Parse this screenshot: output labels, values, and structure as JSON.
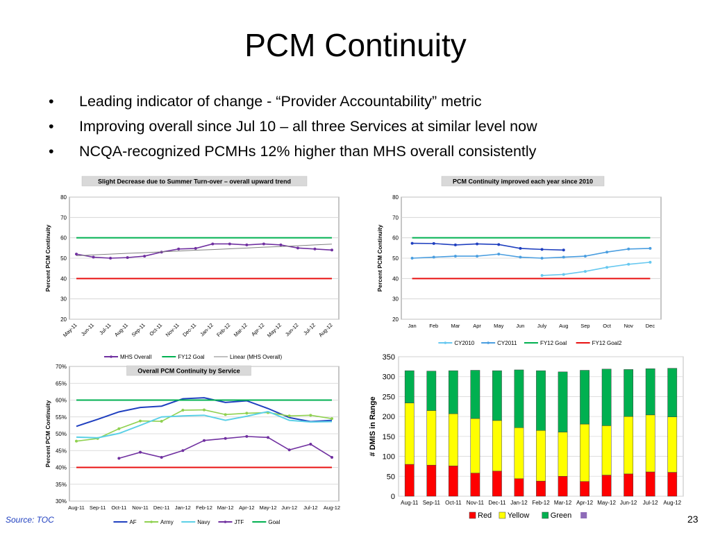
{
  "slide": {
    "title": "PCM Continuity",
    "bullets": [
      "Leading indicator of change - “Provider Accountability” metric",
      "Improving overall since Jul 10 – all three Services at similar level now",
      "NCQA-recognized PCMHs 12% higher than MHS overall consistently"
    ],
    "source": "Source:  TOC",
    "page_number": "23"
  },
  "chart_data": [
    {
      "type": "line",
      "title": "Slight Decrease due to Summer Turn-over – overall upward trend",
      "ylabel": "Percent PCM Continuity",
      "ylim": [
        20,
        80
      ],
      "yticks": [
        20,
        30,
        40,
        50,
        60,
        70,
        80
      ],
      "categories": [
        "May-11",
        "Jun-11",
        "Jul-11",
        "Aug-11",
        "Sep-11",
        "Oct-11",
        "Nov-11",
        "Dec-11",
        "Jan-12",
        "Feb-12",
        "Mar-12",
        "Apr-12",
        "May-12",
        "Jun-12",
        "Jul-12",
        "Aug-12"
      ],
      "series": [
        {
          "name": "MHS Overall",
          "color": "#7030a0",
          "marker": true,
          "values": [
            52,
            50.5,
            50,
            50.3,
            51,
            53,
            54.5,
            54.8,
            57,
            57,
            56.5,
            57,
            56.5,
            55,
            54.5,
            54
          ]
        },
        {
          "name": "FY12 Goal",
          "color": "#00b050",
          "marker": false,
          "values": [
            60,
            60,
            60,
            60,
            60,
            60,
            60,
            60,
            60,
            60,
            60,
            60,
            60,
            60,
            60,
            60
          ]
        },
        {
          "name": "Linear (MHS Overall)",
          "color": "#7f7f7f",
          "marker": false,
          "width": 1,
          "values": [
            51.2,
            51.6,
            52.0,
            52.4,
            52.7,
            53.1,
            53.5,
            53.9,
            54.2,
            54.6,
            55.0,
            55.4,
            55.7,
            56.1,
            56.5,
            56.9
          ]
        }
      ],
      "extra_lines": [
        {
          "color": "#e81010",
          "values": [
            40,
            40,
            40,
            40,
            40,
            40,
            40,
            40,
            40,
            40,
            40,
            40,
            40,
            40,
            40,
            40
          ]
        }
      ],
      "legend": "bottom"
    },
    {
      "type": "line",
      "title": "PCM Continuity improved each year since 2010",
      "ylabel": "Percent PCM Continuity",
      "ylim": [
        20,
        80
      ],
      "yticks": [
        20,
        30,
        40,
        50,
        60,
        70,
        80
      ],
      "categories": [
        "Jan",
        "Feb",
        "Mar",
        "Apr",
        "May",
        "Jun",
        "July",
        "Aug",
        "Sep",
        "Oct",
        "Nov",
        "Dec"
      ],
      "series": [
        {
          "name": "CY2010",
          "color": "#66c8f0",
          "marker": true,
          "values": [
            null,
            null,
            null,
            null,
            null,
            null,
            41.5,
            42,
            43.5,
            45.5,
            47,
            48
          ]
        },
        {
          "name": "CY2011",
          "color": "#4a9ee0",
          "marker": true,
          "values": [
            50,
            50.5,
            51,
            51,
            52,
            50.5,
            50,
            50.5,
            51,
            53,
            54.5,
            54.8
          ]
        },
        {
          "name": "FY12 Goal",
          "color": "#00b050",
          "marker": false,
          "values": [
            60,
            60,
            60,
            60,
            60,
            60,
            60,
            60,
            60,
            60,
            60,
            60
          ]
        },
        {
          "name": "FY12 Goal2",
          "color": "#e81010",
          "marker": false,
          "values": [
            40,
            40,
            40,
            40,
            40,
            40,
            40,
            40,
            40,
            40,
            40,
            40
          ]
        }
      ],
      "extra_lines": [
        {
          "color": "#1f3fbf",
          "marker": true,
          "values": [
            57.3,
            57.2,
            56.5,
            57,
            56.7,
            54.8,
            54.3,
            54
          ]
        }
      ],
      "legend": "bottom"
    },
    {
      "type": "line",
      "title": "Overall PCM Continuity by Service",
      "ylabel": "Percent PCM Continuity",
      "ylim": [
        30,
        70
      ],
      "yticks": [
        30,
        35,
        40,
        45,
        50,
        55,
        60,
        65,
        70
      ],
      "ytick_labels": [
        "30%",
        "35%",
        "40%",
        "45%",
        "50%",
        "55%",
        "60%",
        "65%",
        "70%"
      ],
      "categories": [
        "Aug-11",
        "Sep-11",
        "Oct-11",
        "Nov-11",
        "Dec-11",
        "Jan-12",
        "Feb-12",
        "Mar-12",
        "Apr-12",
        "May-12",
        "Jun-12",
        "Jul-12",
        "Aug-12"
      ],
      "series": [
        {
          "name": "AF",
          "color": "#1f3fbf",
          "marker": false,
          "values": [
            52.2,
            54.3,
            56.5,
            57.8,
            58.2,
            60.4,
            60.7,
            59.3,
            59.8,
            57.5,
            54.8,
            53.6,
            54.0
          ]
        },
        {
          "name": "Army",
          "color": "#8fd14f",
          "marker": true,
          "values": [
            47.8,
            48.6,
            51.5,
            53.8,
            53.7,
            57.0,
            57.1,
            55.7,
            56.1,
            56.3,
            55.3,
            55.5,
            54.5
          ]
        },
        {
          "name": "Navy",
          "color": "#5bd0e6",
          "marker": false,
          "values": [
            49.0,
            48.8,
            50.1,
            52.5,
            55.0,
            55.3,
            55.5,
            54.0,
            55.2,
            56.6,
            54.0,
            53.5,
            53.6
          ]
        },
        {
          "name": "JTF",
          "color": "#7030a0",
          "marker": true,
          "values": [
            null,
            null,
            42.7,
            44.5,
            43.0,
            45.0,
            48.0,
            48.6,
            49.2,
            48.9,
            45.2,
            46.9,
            43.0
          ]
        },
        {
          "name": "Goal",
          "color": "#00b050",
          "marker": false,
          "values": [
            60,
            60,
            60,
            60,
            60,
            60,
            60,
            60,
            60,
            60,
            60,
            60,
            60
          ]
        }
      ],
      "extra_lines": [
        {
          "color": "#e81010",
          "values": [
            40,
            40,
            40,
            40,
            40,
            40,
            40,
            40,
            40,
            40,
            40,
            40,
            40
          ]
        }
      ],
      "legend": "bottom"
    },
    {
      "type": "bar",
      "stacked": true,
      "ylabel": "# DMIS in Range",
      "ylim": [
        0,
        350
      ],
      "yticks": [
        0,
        50,
        100,
        150,
        200,
        250,
        300,
        350
      ],
      "categories": [
        "Aug-11",
        "Sep-11",
        "Oct-11",
        "Nov-11",
        "Dec-11",
        "Jan-12",
        "Feb-12",
        "Mar-12",
        "Apr-12",
        "May-12",
        "Jun-12",
        "Jul-12",
        "Aug-12"
      ],
      "series": [
        {
          "name": "Red",
          "color": "#ff0000",
          "values": [
            80,
            78,
            76,
            58,
            63,
            44,
            38,
            50,
            37,
            53,
            56,
            61,
            60
          ]
        },
        {
          "name": "Yellow",
          "color": "#ffff00",
          "values": [
            154,
            137,
            131,
            137,
            127,
            128,
            127,
            111,
            144,
            124,
            144,
            143,
            139
          ]
        },
        {
          "name": "Green",
          "color": "#00b050",
          "values": [
            81,
            99,
            108,
            121,
            125,
            145,
            150,
            151,
            135,
            142,
            118,
            116,
            122
          ]
        }
      ],
      "legend_extra": [
        {
          "name": "",
          "color": "#8e6bb8"
        }
      ],
      "legend": "bottom"
    }
  ]
}
